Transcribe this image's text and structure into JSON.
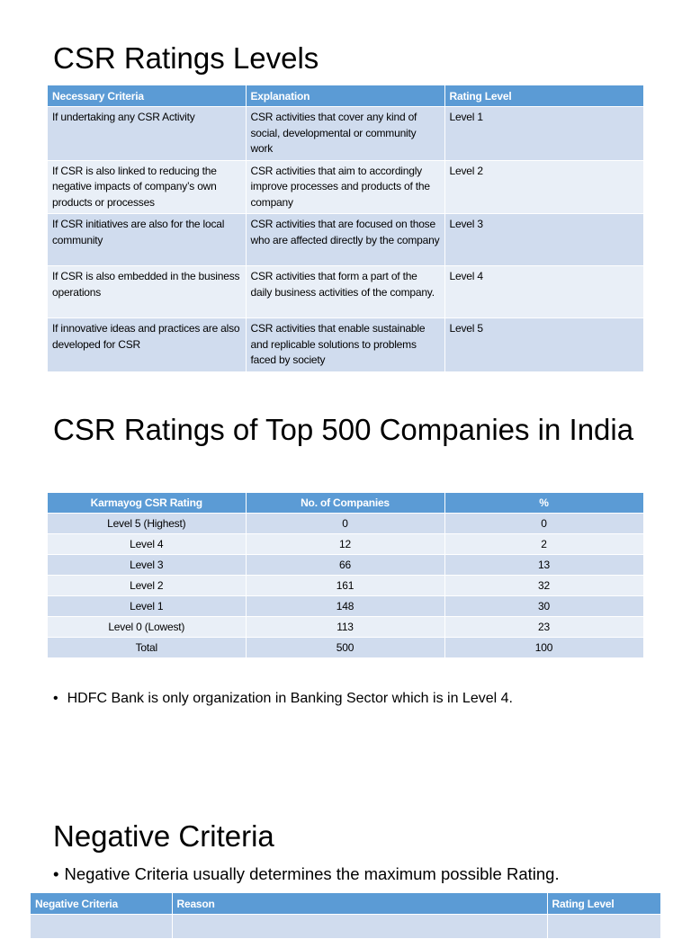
{
  "section1": {
    "title": "CSR Ratings Levels",
    "headers": [
      "Necessary Criteria",
      "Explanation",
      "Rating Level"
    ],
    "rows": [
      [
        "If undertaking any CSR Activity",
        "CSR activities that cover any kind of social, developmental or community work",
        "Level 1"
      ],
      [
        "If CSR is also linked to reducing the negative impacts of company’s own products or processes",
        "CSR activities that aim to accordingly improve processes and products of the company",
        "Level 2"
      ],
      [
        "If CSR initiatives are also for the local community",
        "CSR activities that are focused on those who are affected directly by the company",
        "Level 3"
      ],
      [
        "If CSR is also embedded in the business operations",
        "CSR activities that form a part of the daily business activities of the company.",
        "Level 4"
      ],
      [
        "If innovative ideas and practices are also developed for CSR",
        "CSR activities that enable sustainable and replicable solutions to problems faced by society",
        "Level 5"
      ]
    ]
  },
  "section2": {
    "title": "CSR Ratings of Top 500 Companies in India",
    "headers": [
      "Karmayog CSR Rating",
      "No. of Companies",
      "%"
    ],
    "rows": [
      [
        "Level 5 (Highest)",
        "0",
        "0"
      ],
      [
        "Level 4",
        "12",
        "2"
      ],
      [
        "Level 3",
        "66",
        "13"
      ],
      [
        "Level 2",
        "161",
        "32"
      ],
      [
        "Level 1",
        "148",
        "30"
      ],
      [
        "Level 0 (Lowest)",
        "113",
        "23"
      ],
      [
        "Total",
        "500",
        "100"
      ]
    ],
    "bullet": "HDFC Bank is only organization in Banking Sector which is in Level 4."
  },
  "section3": {
    "title": "Negative Criteria",
    "bullet": "Negative Criteria usually determines the maximum possible Rating.",
    "headers": [
      "Negative Criteria",
      "Reason",
      "Rating Level"
    ]
  },
  "colors": {
    "header": "#5b9bd5",
    "row_dark": "#d0dcee",
    "row_light": "#e9eff7"
  }
}
